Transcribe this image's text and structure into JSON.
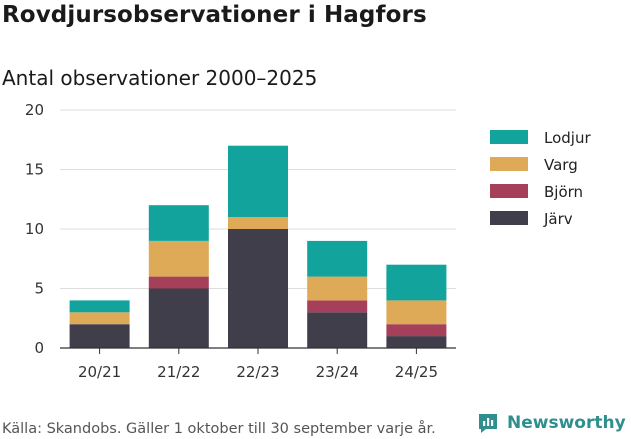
{
  "title": "Rovdjursobservationer i Hagfors",
  "chart_data": {
    "type": "bar",
    "stacked": true,
    "title": "Antal observationer 2000–2025",
    "categories": [
      "20/21",
      "21/22",
      "22/23",
      "23/24",
      "24/25"
    ],
    "series": [
      {
        "name": "Järv",
        "color": "#403e4b",
        "values": [
          2,
          5,
          10,
          3,
          1
        ]
      },
      {
        "name": "Björn",
        "color": "#a63f5a",
        "values": [
          0,
          1,
          0,
          1,
          1
        ]
      },
      {
        "name": "Varg",
        "color": "#deaa58",
        "values": [
          1,
          3,
          1,
          2,
          2
        ]
      },
      {
        "name": "Lodjur",
        "color": "#12a49c",
        "values": [
          1,
          3,
          6,
          3,
          3
        ]
      }
    ],
    "legend_order": [
      "Lodjur",
      "Varg",
      "Björn",
      "Järv"
    ],
    "ylim": [
      0,
      20
    ],
    "yticks": [
      0,
      5,
      10,
      15,
      20
    ],
    "grid": true,
    "legend_position": "right"
  },
  "source": "Källa: Skandobs. Gäller 1 oktober till 30 september varje år.",
  "brand": {
    "name": "Newsworthy",
    "color": "#2f8f8f"
  }
}
